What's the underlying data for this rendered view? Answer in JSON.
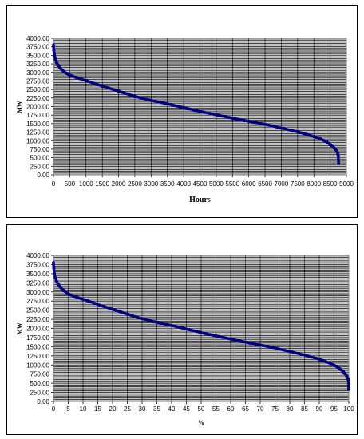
{
  "chart_data": [
    {
      "type": "scatter",
      "xlabel": "Hours",
      "ylabel": "MW",
      "xlim": [
        0,
        9000
      ],
      "ylim": [
        0,
        4000
      ],
      "xticks": [
        "0",
        "500",
        "1000",
        "1500",
        "2000",
        "2500",
        "3000",
        "3500",
        "4000",
        "4500",
        "5000",
        "5500",
        "6000",
        "6500",
        "7000",
        "7500",
        "8000",
        "8500",
        "9000"
      ],
      "yticks": [
        "0.00",
        "250.00",
        "500.00",
        "750.00",
        "1000.00",
        "1250.00",
        "1500.00",
        "1750.00",
        "2000.00",
        "2250.00",
        "2500.00",
        "2750.00",
        "3000.00",
        "3250.00",
        "3500.00",
        "3750.00",
        "4000.00"
      ],
      "grid": true,
      "marker_color": "#000080",
      "series": [
        {
          "x": [
            0,
            10,
            30,
            60,
            100,
            150,
            200,
            300,
            400,
            500,
            700,
            1000,
            1500,
            2000,
            2500,
            3000,
            3500,
            4000,
            4500,
            5000,
            5500,
            6000,
            6500,
            7000,
            7500,
            7800,
            8000,
            8200,
            8400,
            8500,
            8600,
            8650,
            8700,
            8730,
            8750,
            8760
          ],
          "y": [
            3800,
            3650,
            3500,
            3380,
            3280,
            3200,
            3130,
            3040,
            2970,
            2920,
            2850,
            2760,
            2600,
            2450,
            2300,
            2180,
            2080,
            1970,
            1860,
            1760,
            1660,
            1570,
            1480,
            1370,
            1260,
            1180,
            1120,
            1050,
            960,
            890,
            810,
            760,
            700,
            630,
            560,
            330
          ]
        }
      ]
    },
    {
      "type": "scatter",
      "xlabel": "%",
      "ylabel": "MW",
      "xlim": [
        0,
        100
      ],
      "ylim": [
        0,
        4000
      ],
      "xticks": [
        "0",
        "5",
        "10",
        "15",
        "20",
        "25",
        "30",
        "35",
        "40",
        "45",
        "50",
        "55",
        "60",
        "65",
        "70",
        "75",
        "80",
        "85",
        "90",
        "95",
        "100"
      ],
      "yticks": [
        "0.00",
        "250.00",
        "500.00",
        "750.00",
        "1000.00",
        "1250.00",
        "1500.00",
        "1750.00",
        "2000.00",
        "2250.00",
        "2500.00",
        "2750.00",
        "3000.00",
        "3250.00",
        "3500.00",
        "3750.00",
        "4000.00"
      ],
      "grid": true,
      "marker_color": "#000080",
      "series": [
        {
          "x": [
            0,
            0.1,
            0.3,
            0.7,
            1.1,
            1.7,
            2.3,
            3.4,
            4.6,
            5.7,
            8.0,
            11.4,
            17.1,
            22.8,
            28.5,
            34.2,
            40.0,
            45.7,
            51.4,
            57.1,
            62.8,
            68.5,
            74.2,
            79.9,
            85.6,
            89.0,
            91.3,
            93.6,
            95.9,
            97.0,
            98.2,
            98.7,
            99.3,
            99.7,
            99.9,
            100
          ],
          "y": [
            3800,
            3650,
            3500,
            3380,
            3280,
            3200,
            3130,
            3040,
            2970,
            2920,
            2850,
            2760,
            2600,
            2450,
            2300,
            2180,
            2080,
            1970,
            1860,
            1760,
            1660,
            1570,
            1480,
            1370,
            1260,
            1180,
            1120,
            1050,
            960,
            890,
            810,
            760,
            700,
            630,
            560,
            330
          ]
        }
      ]
    }
  ]
}
